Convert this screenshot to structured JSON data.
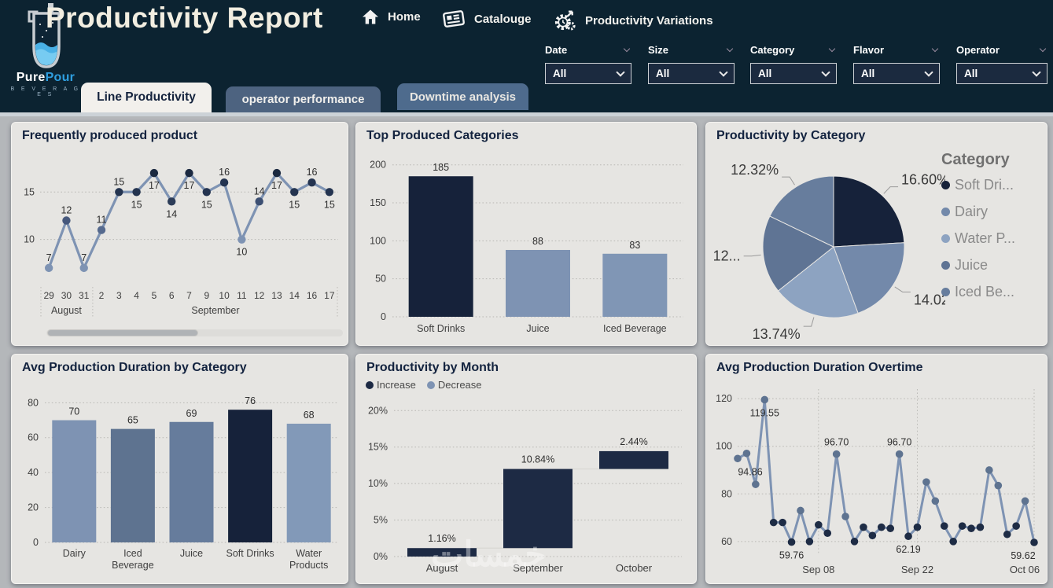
{
  "header": {
    "title": "Productivity Report",
    "brand": {
      "name_1": "Pure",
      "name_2": "Pour",
      "tagline": "B E V E R A G E S"
    },
    "nav": [
      {
        "label": "Home",
        "icon": "home-icon"
      },
      {
        "label": "Catalouge",
        "icon": "catalogue-icon"
      },
      {
        "label": "Productivity Variations",
        "icon": "gear-clock-icon"
      }
    ],
    "filters": [
      {
        "label": "Date",
        "value": "All"
      },
      {
        "label": "Size",
        "value": "All"
      },
      {
        "label": "Category",
        "value": "All"
      },
      {
        "label": "Flavor",
        "value": "All"
      },
      {
        "label": "Operator",
        "value": "All"
      }
    ],
    "tabs": [
      {
        "label": "Line Productivity",
        "active": true
      },
      {
        "label": "operator performance",
        "active": false
      },
      {
        "label": "Downtime analysis",
        "active": false
      }
    ]
  },
  "watermark": "خمسات",
  "colors": {
    "header_bg": "#0c2331",
    "dark_navy": "#16223a",
    "slate": "#7e93b3",
    "slate_light": "#8da3c1",
    "slate_dark": "#5e7390",
    "card_bg": "#e6e5e2",
    "page_bg": "#b4b7ba",
    "grid": "#b9b8b4"
  },
  "chart_data": [
    {
      "id": "frequently-produced-product",
      "type": "line",
      "title": "Frequently produced product",
      "categories": [
        "29",
        "30",
        "31",
        "2",
        "3",
        "4",
        "5",
        "6",
        "7",
        "9",
        "10",
        "11",
        "12",
        "13",
        "14",
        "16",
        "17"
      ],
      "group_labels": [
        {
          "label": "August",
          "span": [
            0,
            2
          ]
        },
        {
          "label": "September",
          "span": [
            3,
            16
          ]
        }
      ],
      "values": [
        7,
        12,
        7,
        11,
        15,
        15,
        17,
        14,
        17,
        15,
        16,
        10,
        14,
        17,
        15,
        16,
        15
      ],
      "label_positions": [
        "above",
        "above",
        "above",
        "above",
        "above",
        "below",
        "below",
        "below",
        "below",
        "below",
        "above",
        "below",
        "above",
        "below",
        "below",
        "above",
        "below"
      ],
      "marker_colors": [
        "#7e93b3",
        "#46587c",
        "#7e93b3",
        "#566a8e",
        "#243450",
        "#243450",
        "#1b2940",
        "#2c3c58",
        "#1b2940",
        "#243450",
        "#243450",
        "#7e93b3",
        "#3c4f72",
        "#1b2940",
        "#243450",
        "#243450",
        "#243450"
      ],
      "line_color": "#7e93b3",
      "yticks": [
        10,
        15
      ],
      "ylim": [
        5.5,
        18.5
      ],
      "has_scrollbar": true
    },
    {
      "id": "top-produced-categories",
      "type": "bar",
      "title": "Top Produced Categories",
      "categories": [
        "Soft Drinks",
        "Juice",
        "Iced Beverage"
      ],
      "values": [
        185,
        88,
        83
      ],
      "bar_colors": [
        "#16223a",
        "#7e93b3",
        "#8096b5"
      ],
      "yticks": [
        0,
        50,
        100,
        150,
        200
      ],
      "ylim": [
        0,
        208
      ]
    },
    {
      "id": "productivity-by-category",
      "type": "pie",
      "title": "Productivity by Category",
      "legend_title": "Category",
      "slices": [
        {
          "label": "Soft Dri...",
          "value": 16.6,
          "display": "16.60%",
          "color": "#16223a"
        },
        {
          "label": "Dairy",
          "value": 14.02,
          "display": "14.02%",
          "color": "#7389aa"
        },
        {
          "label": "Water P...",
          "value": 13.74,
          "display": "13.74%",
          "color": "#8da3c1"
        },
        {
          "label": "Juice",
          "value": 12.3,
          "display": "12...",
          "color": "#5f7494"
        },
        {
          "label": "Iced Be...",
          "value": 12.32,
          "display": "12.32%",
          "color": "#677d9d"
        }
      ]
    },
    {
      "id": "avg-production-duration-by-category",
      "type": "bar",
      "title": "Avg Production Duration by Category",
      "categories": [
        [
          "Dairy"
        ],
        [
          "Iced",
          "Beverage"
        ],
        [
          "Juice"
        ],
        [
          "Soft Drinks"
        ],
        [
          "Water",
          "Products"
        ]
      ],
      "values": [
        70,
        65,
        69,
        76,
        68
      ],
      "bar_colors": [
        "#7e93b3",
        "#5e7390",
        "#667c9c",
        "#16223a",
        "#8299b8"
      ],
      "yticks": [
        0,
        20,
        40,
        60,
        80
      ],
      "ylim": [
        0,
        86
      ]
    },
    {
      "id": "productivity-by-month",
      "type": "waterfall",
      "title": "Productivity by Month",
      "legend": [
        {
          "label": "Increase",
          "color": "#1d2a44"
        },
        {
          "label": "Decrease",
          "color": "#7e93b3"
        }
      ],
      "categories": [
        "August",
        "September",
        "October"
      ],
      "bars": [
        {
          "start": 0,
          "end": 1.16,
          "label": "1.16%",
          "color": "#1d2a44"
        },
        {
          "start": 1.16,
          "end": 12.0,
          "label": "10.84%",
          "color": "#1d2a44"
        },
        {
          "start": 12.0,
          "end": 14.44,
          "label": "2.44%",
          "color": "#1d2a44"
        }
      ],
      "yticks": [
        0,
        5,
        10,
        15,
        20
      ],
      "ytick_suffix": "%",
      "ylim": [
        0,
        21
      ]
    },
    {
      "id": "avg-production-duration-overtime",
      "type": "line",
      "title": "Avg Production Duration Overtime",
      "values": [
        94.86,
        97,
        84,
        119.55,
        68,
        68,
        59.76,
        73,
        60,
        67,
        63.5,
        96.7,
        70.5,
        60,
        66,
        62.5,
        66,
        65.5,
        96.7,
        62.19,
        66,
        85,
        77,
        66.5,
        60,
        66.5,
        65.5,
        66,
        90,
        83.5,
        63,
        66.5,
        77,
        59.62
      ],
      "point_labels": [
        {
          "index": 0,
          "text": "94.86",
          "pos": "below"
        },
        {
          "index": 3,
          "text": "119.55",
          "pos": "below"
        },
        {
          "index": 6,
          "text": "59.76",
          "pos": "below"
        },
        {
          "index": 11,
          "text": "96.70",
          "pos": "above"
        },
        {
          "index": 18,
          "text": "96.70",
          "pos": "above"
        },
        {
          "index": 19,
          "text": "62.19",
          "pos": "below"
        },
        {
          "index": 33,
          "text": "59.62",
          "pos": "below"
        }
      ],
      "xticks": [
        {
          "index": 9,
          "label": "Sep 08"
        },
        {
          "index": 20,
          "label": "Sep 22"
        },
        {
          "index": 33,
          "label": "Oct 06"
        }
      ],
      "line_color": "#7e93b3",
      "yticks": [
        60,
        80,
        100,
        120
      ],
      "ylim": [
        55,
        124
      ]
    }
  ]
}
